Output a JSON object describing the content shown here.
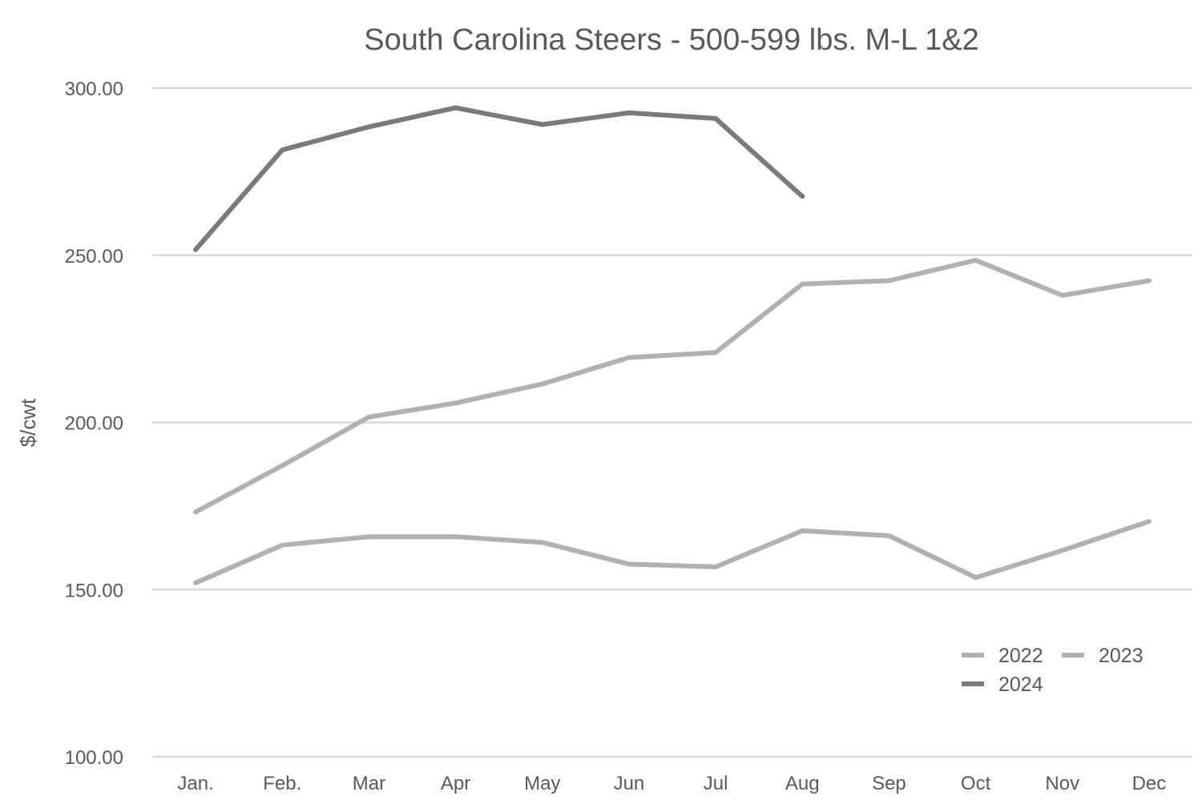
{
  "chart_data": {
    "type": "line",
    "title": "South Carolina Steers - 500-599 lbs. M-L 1&2",
    "xlabel": "",
    "ylabel": "$/cwt",
    "ylim": [
      100,
      300
    ],
    "yticks": [
      100,
      150,
      200,
      250,
      300
    ],
    "ytick_labels": [
      "100.00",
      "150.00",
      "200.00",
      "250.00",
      "300.00"
    ],
    "grid": true,
    "legend_position": "bottom-right",
    "categories": [
      "Jan.",
      "Feb.",
      "Mar",
      "Apr",
      "May",
      "Jun",
      "Jul",
      "Aug",
      "Sep",
      "Oct",
      "Nov",
      "Dec"
    ],
    "series": [
      {
        "name": "2022",
        "color": "#b1b1b4",
        "values": [
          152.0,
          163.3,
          165.8,
          165.8,
          164.1,
          157.6,
          156.8,
          167.6,
          166.1,
          153.6,
          161.7,
          170.4
        ]
      },
      {
        "name": "2023",
        "color": "#b1b1b4",
        "values": [
          173.2,
          187.1,
          201.6,
          205.8,
          211.5,
          219.4,
          220.9,
          241.4,
          242.4,
          248.5,
          238.0,
          242.4
        ]
      },
      {
        "name": "2024",
        "color": "#7a7a7e",
        "values": [
          251.7,
          281.5,
          288.4,
          294.1,
          289.1,
          292.6,
          290.9,
          267.6,
          null,
          null,
          null,
          null
        ]
      }
    ]
  }
}
